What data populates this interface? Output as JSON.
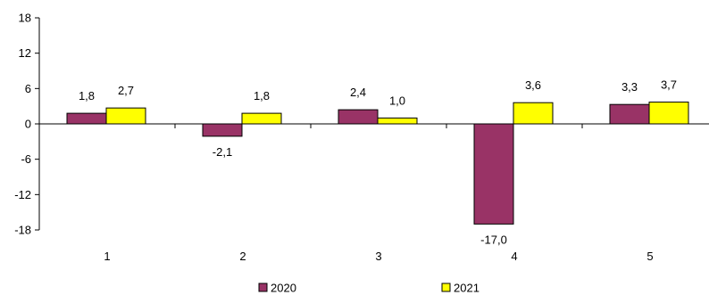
{
  "chart_data": {
    "type": "bar",
    "title": "",
    "xlabel": "",
    "ylabel": "",
    "categories": [
      "1",
      "2",
      "3",
      "4",
      "5"
    ],
    "series": [
      {
        "name": "2020",
        "color": "#993366",
        "values": [
          1.8,
          -2.1,
          2.4,
          -17.0,
          3.3
        ],
        "labels": [
          "1,8",
          "-2,1",
          "2,4",
          "-17,0",
          "3,3"
        ]
      },
      {
        "name": "2021",
        "color": "#FFFF00",
        "values": [
          2.7,
          1.8,
          1.0,
          3.6,
          3.7
        ],
        "labels": [
          "2,7",
          "1,8",
          "1,0",
          "3,6",
          "3,7"
        ]
      }
    ],
    "ylim": [
      -18,
      18
    ],
    "yticks": [
      18,
      12,
      6,
      0,
      -6,
      -12,
      -18
    ],
    "ytick_labels": [
      "18",
      "12",
      "6",
      "0",
      "-6",
      "-12",
      "-18"
    ],
    "grid": false,
    "legend_position": "bottom"
  }
}
